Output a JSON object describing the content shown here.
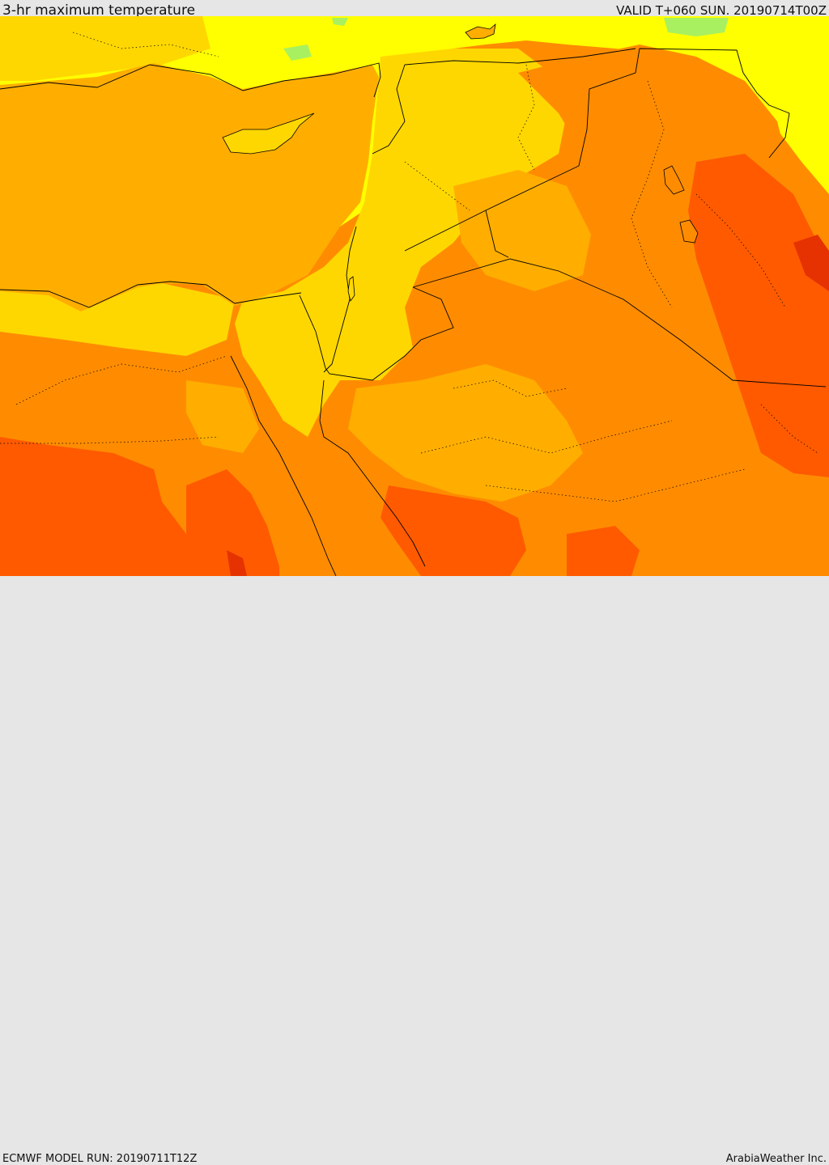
{
  "header": {
    "title": "3-hr maximum temperature",
    "valid_time": "VALID T+060 SUN. 20190714T00Z"
  },
  "footer": {
    "model_run": "ECMWF MODEL RUN: 20190711T12Z",
    "credit": "ArabiaWeather Inc."
  },
  "colors": {
    "light-green": "#a8f060",
    "yellow": "#ffff00",
    "light-orange": "#ffd700",
    "sea-orange": "#ffae00",
    "orange": "#ff8c00",
    "dark-orange": "#ff5a00",
    "red": "#e63200",
    "border-line": "#000000"
  }
}
